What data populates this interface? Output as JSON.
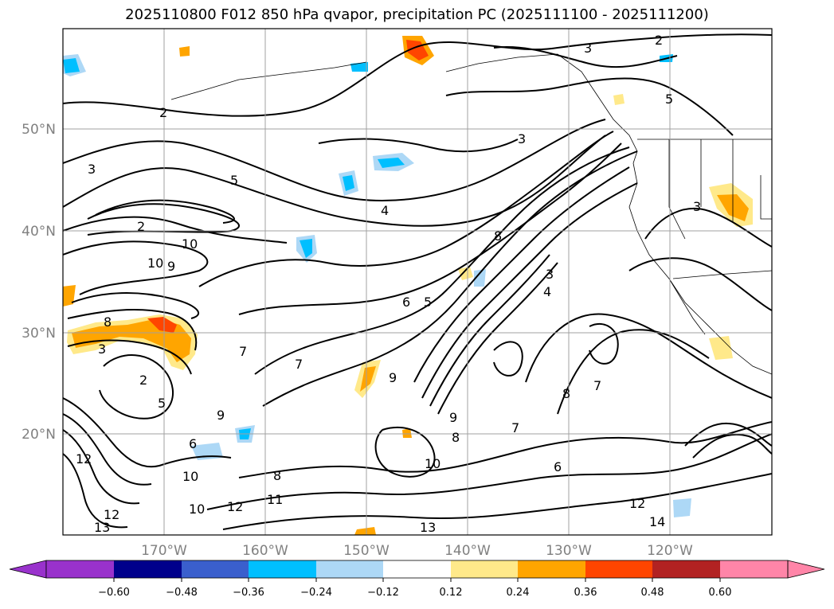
{
  "title": "2025110800 F012 850 hPa qvapor, precipitation PC (2025111100 - 2025111200)",
  "map": {
    "lat_labels": [
      "50°N",
      "40°N",
      "30°N",
      "20°N"
    ],
    "lon_labels": [
      "170°W",
      "160°W",
      "150°W",
      "140°W",
      "130°W",
      "120°W"
    ],
    "contour_labels": [
      "2",
      "3",
      "4",
      "5",
      "6",
      "7",
      "8",
      "9",
      "10",
      "11",
      "12",
      "13",
      "14"
    ]
  },
  "colorbar": {
    "ticks": [
      "−0.60",
      "−0.48",
      "−0.36",
      "−0.24",
      "−0.12",
      "0.12",
      "0.24",
      "0.36",
      "0.48",
      "0.60"
    ],
    "colors": [
      "#9932cc",
      "#00008b",
      "#3a5fcd",
      "#00bfff",
      "#add8f6",
      "#ffffff",
      "#ffe98a",
      "#ffa500",
      "#ff4500",
      "#b22222",
      "#ff85a8"
    ]
  }
}
